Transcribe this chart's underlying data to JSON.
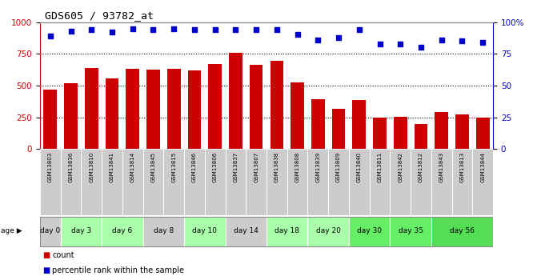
{
  "title": "GDS605 / 93782_at",
  "gsm_labels": [
    "GSM13803",
    "GSM13836",
    "GSM13810",
    "GSM13841",
    "GSM13814",
    "GSM13845",
    "GSM13815",
    "GSM13846",
    "GSM13806",
    "GSM13837",
    "GSM13807",
    "GSM13838",
    "GSM13808",
    "GSM13839",
    "GSM13809",
    "GSM13840",
    "GSM13811",
    "GSM13842",
    "GSM13812",
    "GSM13843",
    "GSM13813",
    "GSM13844"
  ],
  "age_groups": [
    {
      "label": "day 0",
      "start": 0,
      "end": 1,
      "gsm_color": "#cccccc",
      "age_color": "#cccccc"
    },
    {
      "label": "day 3",
      "start": 1,
      "end": 3,
      "gsm_color": "#cccccc",
      "age_color": "#aaffaa"
    },
    {
      "label": "day 6",
      "start": 3,
      "end": 5,
      "gsm_color": "#cccccc",
      "age_color": "#aaffaa"
    },
    {
      "label": "day 8",
      "start": 5,
      "end": 7,
      "gsm_color": "#cccccc",
      "age_color": "#cccccc"
    },
    {
      "label": "day 10",
      "start": 7,
      "end": 9,
      "gsm_color": "#cccccc",
      "age_color": "#aaffaa"
    },
    {
      "label": "day 14",
      "start": 9,
      "end": 11,
      "gsm_color": "#cccccc",
      "age_color": "#cccccc"
    },
    {
      "label": "day 18",
      "start": 11,
      "end": 13,
      "gsm_color": "#cccccc",
      "age_color": "#aaffaa"
    },
    {
      "label": "day 20",
      "start": 13,
      "end": 15,
      "gsm_color": "#cccccc",
      "age_color": "#aaffaa"
    },
    {
      "label": "day 30",
      "start": 15,
      "end": 17,
      "gsm_color": "#cccccc",
      "age_color": "#66ee66"
    },
    {
      "label": "day 35",
      "start": 17,
      "end": 19,
      "gsm_color": "#cccccc",
      "age_color": "#66ee66"
    },
    {
      "label": "day 56",
      "start": 19,
      "end": 22,
      "gsm_color": "#cccccc",
      "age_color": "#55dd55"
    }
  ],
  "bar_values": [
    470,
    520,
    640,
    555,
    635,
    625,
    630,
    620,
    670,
    755,
    665,
    695,
    525,
    390,
    320,
    385,
    245,
    255,
    200,
    290,
    270,
    250
  ],
  "dot_values": [
    89,
    93,
    94,
    92,
    95,
    94,
    95,
    94,
    94,
    94,
    94,
    94,
    90,
    86,
    88,
    94,
    83,
    83,
    80,
    86,
    85,
    84
  ],
  "bar_color": "#cc0000",
  "dot_color": "#0000cc",
  "ylim_left": [
    0,
    1000
  ],
  "ylim_right": [
    0,
    100
  ],
  "yticks_left": [
    0,
    250,
    500,
    750,
    1000
  ],
  "yticks_right": [
    0,
    25,
    50,
    75,
    100
  ],
  "bg_color": "#ffffff",
  "bar_width": 0.65,
  "legend_count_label": "count",
  "legend_pct_label": "percentile rank within the sample"
}
